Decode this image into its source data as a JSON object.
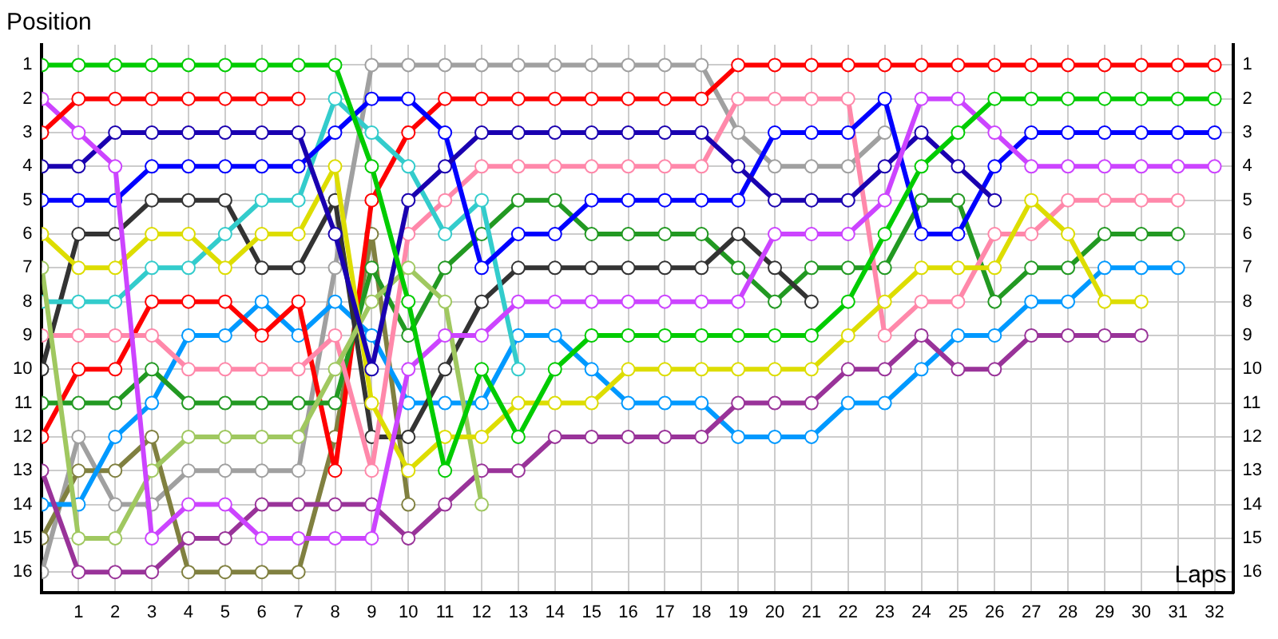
{
  "chart_data": {
    "type": "line",
    "xlabel": "Laps",
    "ylabel": "Position",
    "marker": "circle",
    "grid": true,
    "legend": false,
    "x": [
      0,
      1,
      2,
      3,
      4,
      5,
      6,
      7,
      8,
      9,
      10,
      11,
      12,
      13,
      14,
      15,
      16,
      17,
      18,
      19,
      20,
      21,
      22,
      23,
      24,
      25,
      26,
      27,
      28,
      29,
      30,
      31,
      32
    ],
    "xlim": [
      0,
      32.5
    ],
    "xticks": [
      1,
      2,
      3,
      4,
      5,
      6,
      7,
      8,
      9,
      10,
      11,
      12,
      13,
      14,
      15,
      16,
      17,
      18,
      19,
      20,
      21,
      22,
      23,
      24,
      25,
      26,
      27,
      28,
      29,
      30,
      31,
      32
    ],
    "ylim": [
      16.6,
      0.4
    ],
    "yticks": [
      1,
      2,
      3,
      4,
      5,
      6,
      7,
      8,
      9,
      10,
      11,
      12,
      13,
      14,
      15,
      16
    ],
    "y2lim": [
      16.6,
      0.4
    ],
    "y2ticks": [
      1,
      2,
      3,
      4,
      5,
      6,
      7,
      8,
      9,
      10,
      11,
      12,
      13,
      14,
      15,
      16
    ],
    "series": [
      {
        "color": "#00cc00",
        "values": [
          1,
          1,
          1,
          1,
          1,
          1,
          1,
          1,
          1,
          4,
          8,
          13,
          10,
          12,
          10,
          9,
          9,
          9,
          9,
          9,
          9,
          9,
          8,
          6,
          4,
          3,
          2,
          2,
          2,
          2,
          2,
          2,
          2
        ]
      },
      {
        "color": "#ff0000",
        "values": [
          3,
          2,
          2,
          2,
          2,
          2,
          2,
          2,
          null,
          null,
          null,
          null,
          null,
          null,
          null,
          null,
          null,
          null,
          null,
          null,
          null,
          null,
          null,
          null,
          null,
          null,
          null,
          null,
          null,
          null,
          null,
          null,
          null
        ]
      },
      {
        "color": "#cc44ff",
        "values": [
          2,
          3,
          4,
          15,
          14,
          14,
          15,
          15,
          15,
          15,
          10,
          9,
          9,
          8,
          8,
          8,
          8,
          8,
          8,
          8,
          6,
          6,
          6,
          5,
          2,
          2,
          3,
          4,
          4,
          4,
          4,
          4,
          4
        ]
      },
      {
        "color": "#1a00b0",
        "values": [
          4,
          4,
          3,
          3,
          3,
          3,
          3,
          3,
          6,
          10,
          5,
          4,
          3,
          3,
          3,
          3,
          3,
          3,
          3,
          4,
          5,
          5,
          5,
          4,
          3,
          4,
          5,
          null,
          null,
          null,
          null,
          null,
          null
        ]
      },
      {
        "color": "#0000ff",
        "values": [
          5,
          5,
          5,
          4,
          4,
          4,
          4,
          4,
          3,
          2,
          2,
          3,
          7,
          6,
          6,
          5,
          5,
          5,
          5,
          5,
          3,
          3,
          3,
          2,
          6,
          6,
          4,
          3,
          3,
          3,
          3,
          3,
          3
        ]
      },
      {
        "color": "#dddd00",
        "values": [
          6,
          7,
          7,
          6,
          6,
          7,
          6,
          6,
          4,
          11,
          13,
          12,
          12,
          11,
          11,
          11,
          10,
          10,
          10,
          10,
          10,
          10,
          9,
          8,
          7,
          7,
          7,
          5,
          6,
          8,
          8,
          null,
          null
        ]
      },
      {
        "color": "#a0c860",
        "values": [
          7,
          15,
          15,
          13,
          12,
          12,
          12,
          12,
          10,
          8,
          7,
          8,
          14,
          null,
          null,
          null,
          null,
          null,
          null,
          null,
          null,
          null,
          null,
          null,
          null,
          null,
          null,
          null,
          null,
          null,
          null,
          null,
          null
        ]
      },
      {
        "color": "#33cccc",
        "values": [
          8,
          8,
          8,
          7,
          7,
          6,
          5,
          5,
          2,
          3,
          4,
          6,
          5,
          10,
          null,
          null,
          null,
          null,
          null,
          null,
          null,
          null,
          null,
          null,
          null,
          null,
          null,
          null,
          null,
          null,
          null,
          null,
          null
        ]
      },
      {
        "color": "#ff88aa",
        "values": [
          9,
          9,
          9,
          9,
          10,
          10,
          10,
          10,
          9,
          13,
          6,
          5,
          4,
          4,
          4,
          4,
          4,
          4,
          4,
          2,
          2,
          2,
          2,
          9,
          8,
          8,
          6,
          6,
          5,
          5,
          5,
          5,
          null
        ]
      },
      {
        "color": "#333333",
        "values": [
          10,
          6,
          6,
          5,
          5,
          5,
          7,
          7,
          5,
          12,
          12,
          10,
          8,
          7,
          7,
          7,
          7,
          7,
          7,
          6,
          7,
          8,
          null,
          null,
          null,
          null,
          null,
          null,
          null,
          null,
          null,
          null,
          null
        ]
      },
      {
        "color": "#229922",
        "values": [
          11,
          11,
          11,
          10,
          11,
          11,
          11,
          11,
          11,
          7,
          9,
          7,
          6,
          5,
          5,
          6,
          6,
          6,
          6,
          7,
          8,
          7,
          7,
          7,
          5,
          5,
          8,
          7,
          7,
          6,
          6,
          6,
          null
        ]
      },
      {
        "color": "#ff0000",
        "values": [
          12,
          10,
          10,
          8,
          8,
          8,
          9,
          8,
          13,
          5,
          3,
          2,
          2,
          2,
          2,
          2,
          2,
          2,
          2,
          1,
          1,
          1,
          1,
          1,
          1,
          1,
          1,
          1,
          1,
          1,
          1,
          1,
          1
        ]
      },
      {
        "color": "#993399",
        "values": [
          13,
          16,
          16,
          16,
          15,
          15,
          14,
          14,
          14,
          14,
          15,
          14,
          13,
          13,
          12,
          12,
          12,
          12,
          12,
          11,
          11,
          11,
          10,
          10,
          9,
          10,
          10,
          9,
          9,
          9,
          9,
          null,
          null
        ]
      },
      {
        "color": "#0099ff",
        "values": [
          14,
          14,
          12,
          11,
          9,
          9,
          8,
          9,
          8,
          9,
          11,
          11,
          11,
          9,
          9,
          10,
          11,
          11,
          11,
          12,
          12,
          12,
          11,
          11,
          10,
          9,
          9,
          8,
          8,
          7,
          7,
          7,
          null
        ]
      },
      {
        "color": "#808040",
        "values": [
          15,
          13,
          13,
          12,
          16,
          16,
          16,
          16,
          12,
          6,
          14,
          null,
          null,
          null,
          null,
          null,
          null,
          null,
          null,
          null,
          null,
          null,
          null,
          null,
          null,
          null,
          null,
          null,
          null,
          null,
          null,
          null,
          null
        ]
      },
      {
        "color": "#a0a0a0",
        "values": [
          16,
          12,
          14,
          14,
          13,
          13,
          13,
          13,
          7,
          1,
          1,
          1,
          1,
          1,
          1,
          1,
          1,
          1,
          1,
          3,
          4,
          4,
          4,
          3,
          null,
          null,
          null,
          null,
          null,
          null,
          null,
          null,
          null
        ]
      }
    ]
  }
}
